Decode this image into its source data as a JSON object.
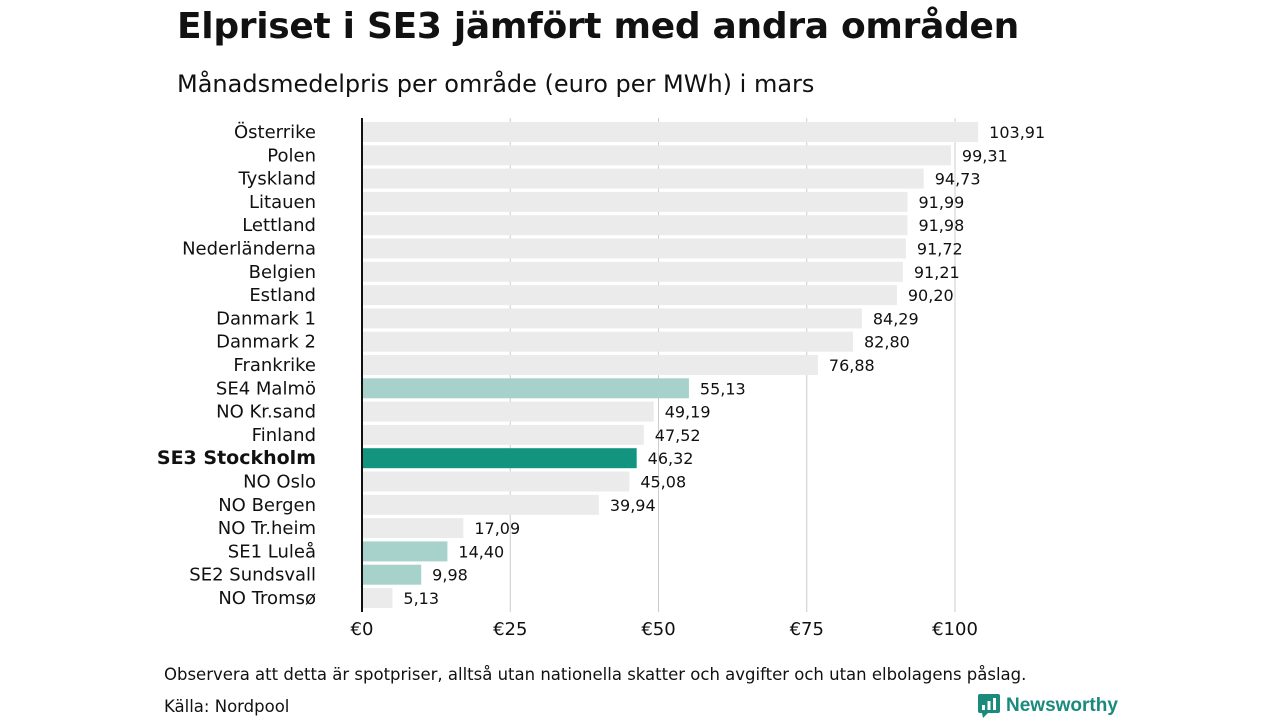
{
  "header": {
    "title": "Elpriset i SE3 jämfört med andra områden",
    "subtitle": "Månadsmedelpris per område (euro per MWh) i mars"
  },
  "footer": {
    "note": "Observera att detta är spotpriser, alltså utan nationella skatter och avgifter och utan elbolagens påslag.",
    "source": "Källa: Nordpool",
    "brand": "Newsworthy",
    "brand_icon": "newsworthy-logo-icon"
  },
  "colors": {
    "default_bar": "#ebebeb",
    "se_bar": "#a7d1cb",
    "highlight_bar": "#12947f",
    "brand": "#1a8a7d",
    "grid": "#cccccc",
    "axis": "#111111"
  },
  "chart_data": {
    "type": "bar",
    "orientation": "horizontal",
    "title": "Elpriset i SE3 jämfört med andra områden",
    "subtitle": "Månadsmedelpris per område (euro per MWh) i mars",
    "categories": [
      "Österrike",
      "Polen",
      "Tyskland",
      "Litauen",
      "Lettland",
      "Nederländerna",
      "Belgien",
      "Estland",
      "Danmark 1",
      "Danmark 2",
      "Frankrike",
      "SE4 Malmö",
      "NO Kr.sand",
      "Finland",
      "SE3 Stockholm",
      "NO Oslo",
      "NO Bergen",
      "NO Tr.heim",
      "SE1 Luleå",
      "SE2 Sundsvall",
      "NO Tromsø"
    ],
    "values": [
      103.91,
      99.31,
      94.73,
      91.99,
      91.98,
      91.72,
      91.21,
      90.2,
      84.29,
      82.8,
      76.88,
      55.13,
      49.19,
      47.52,
      46.32,
      45.08,
      39.94,
      17.09,
      14.4,
      9.98,
      5.13
    ],
    "value_labels": [
      "103,91",
      "99,31",
      "94,73",
      "91,99",
      "91,98",
      "91,72",
      "91,21",
      "90,20",
      "84,29",
      "82,80",
      "76,88",
      "55,13",
      "49,19",
      "47,52",
      "46,32",
      "45,08",
      "39,94",
      "17,09",
      "14,40",
      "9,98",
      "5,13"
    ],
    "bar_color_keys": [
      "default_bar",
      "default_bar",
      "default_bar",
      "default_bar",
      "default_bar",
      "default_bar",
      "default_bar",
      "default_bar",
      "default_bar",
      "default_bar",
      "default_bar",
      "se_bar",
      "default_bar",
      "default_bar",
      "highlight_bar",
      "default_bar",
      "default_bar",
      "default_bar",
      "se_bar",
      "se_bar",
      "default_bar"
    ],
    "highlight_category": "SE3 Stockholm",
    "xlim": [
      0,
      100
    ],
    "xticks": [
      0,
      25,
      50,
      75,
      100
    ],
    "xtick_labels": [
      "€0",
      "€25",
      "€50",
      "€75",
      "€100"
    ],
    "grid": true,
    "legend": "none"
  }
}
